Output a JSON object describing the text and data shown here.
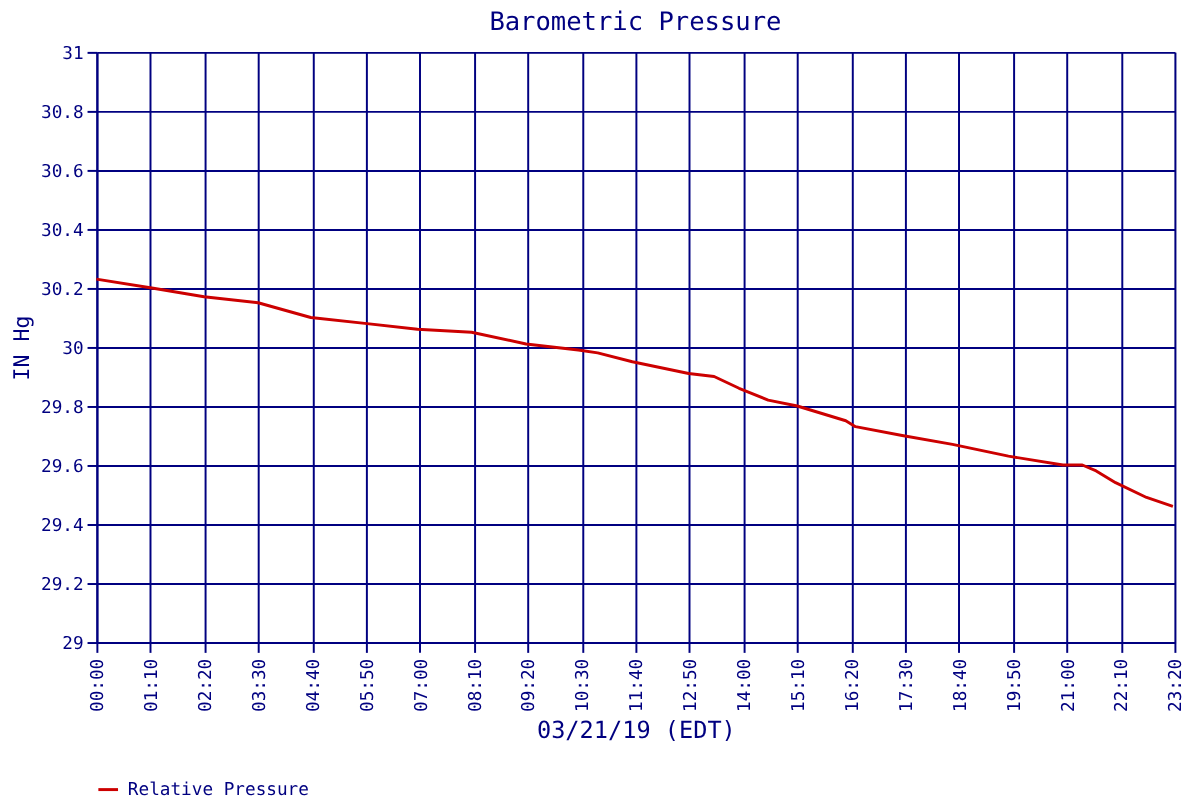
{
  "chart_data": {
    "type": "line",
    "title": "Barometric Pressure",
    "xlabel": "03/21/19 (EDT)",
    "ylabel": "IN Hg",
    "x": [
      0.0,
      1.2,
      2.33,
      3.5,
      4.64,
      5.81,
      6.95,
      8.12,
      9.3,
      10.43,
      10.85,
      11.6,
      12.82,
      13.37,
      13.91,
      14.54,
      15.17,
      16.22,
      16.43,
      17.44,
      18.53,
      19.74,
      20.92,
      21.34,
      21.64,
      22.06,
      22.73,
      23.3
    ],
    "series": [
      {
        "name": "Relative Pressure",
        "color": "#cc0000",
        "values": [
          30.23,
          30.2,
          30.17,
          30.15,
          30.1,
          30.08,
          30.06,
          30.05,
          30.01,
          29.99,
          29.98,
          29.95,
          29.91,
          29.9,
          29.86,
          29.82,
          29.8,
          29.75,
          29.73,
          29.7,
          29.67,
          29.63,
          29.6,
          29.6,
          29.58,
          29.54,
          29.49,
          29.46
        ]
      }
    ],
    "xlim": [
      0,
      23.3333
    ],
    "xticks": [
      {
        "value": 0,
        "label": "00:00"
      },
      {
        "value": 1.1667,
        "label": "01:10"
      },
      {
        "value": 2.3333,
        "label": "02:20"
      },
      {
        "value": 3.5,
        "label": "03:30"
      },
      {
        "value": 4.6667,
        "label": "04:40"
      },
      {
        "value": 5.8333,
        "label": "05:50"
      },
      {
        "value": 7,
        "label": "07:00"
      },
      {
        "value": 8.1667,
        "label": "08:10"
      },
      {
        "value": 9.3333,
        "label": "09:20"
      },
      {
        "value": 10.5,
        "label": "10:30"
      },
      {
        "value": 11.6667,
        "label": "11:40"
      },
      {
        "value": 12.8333,
        "label": "12:50"
      },
      {
        "value": 14,
        "label": "14:00"
      },
      {
        "value": 15.1667,
        "label": "15:10"
      },
      {
        "value": 16.3333,
        "label": "16:20"
      },
      {
        "value": 17.5,
        "label": "17:30"
      },
      {
        "value": 18.6667,
        "label": "18:40"
      },
      {
        "value": 19.8333,
        "label": "19:50"
      },
      {
        "value": 21,
        "label": "21:00"
      },
      {
        "value": 22.1667,
        "label": "22:10"
      },
      {
        "value": 23.3333,
        "label": "23:20"
      }
    ],
    "ylim": [
      29,
      31
    ],
    "yticks": [
      29,
      29.2,
      29.4,
      29.6,
      29.8,
      30,
      30.2,
      30.4,
      30.6,
      30.8,
      31
    ],
    "grid": true,
    "legend": "bottom",
    "marker": "none",
    "line_style": "solid"
  }
}
